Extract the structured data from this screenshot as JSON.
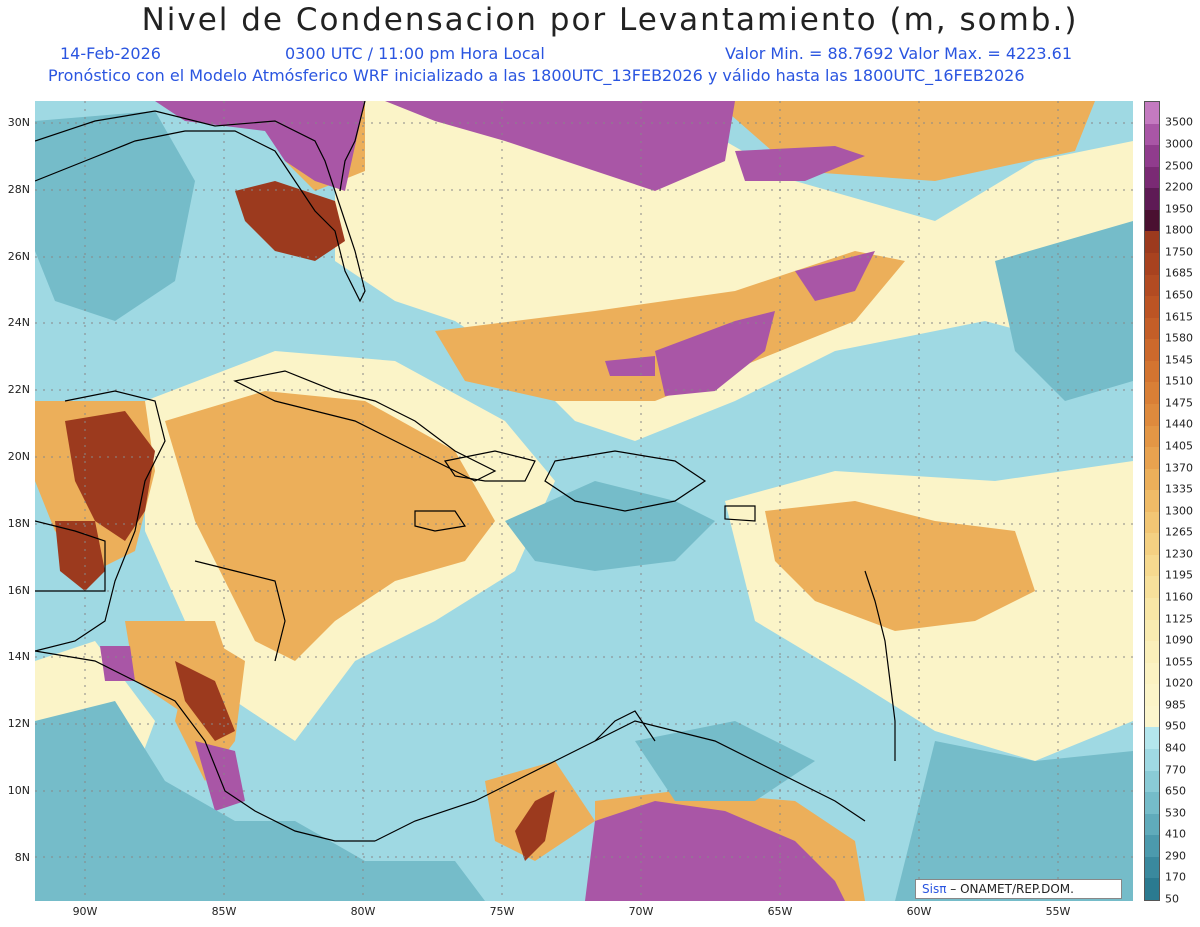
{
  "header": {
    "title": "Nivel de Condensacion por Levantamiento (m, somb.)",
    "date": "14-Feb-2026",
    "time": "0300 UTC / 11:00 pm Hora Local",
    "min_max": "Valor Min. = 88.7692  Valor Max. = 4223.61",
    "forecast": "Pronóstico con el Modelo Atmósferico WRF inicializado a las 1800UTC_13FEB2026 y válido hasta las  1800UTC_16FEB2026"
  },
  "axes": {
    "lat_labels": [
      "30N",
      "28N",
      "26N",
      "24N",
      "22N",
      "20N",
      "18N",
      "16N",
      "14N",
      "12N",
      "10N",
      "8N"
    ],
    "lon_labels": [
      "90W",
      "85W",
      "80W",
      "75W",
      "70W",
      "65W",
      "60W",
      "55W"
    ]
  },
  "colorbar": {
    "levels": [
      "3500",
      "3000",
      "2500",
      "2200",
      "1950",
      "1800",
      "1750",
      "1685",
      "1650",
      "1615",
      "1580",
      "1545",
      "1510",
      "1475",
      "1440",
      "1405",
      "1370",
      "1335",
      "1300",
      "1265",
      "1230",
      "1195",
      "1160",
      "1125",
      "1090",
      "1055",
      "1020",
      "985",
      "950",
      "840",
      "770",
      "650",
      "530",
      "410",
      "290",
      "170",
      "50"
    ],
    "colors": [
      "#c47ac0",
      "#a956a6",
      "#903c8d",
      "#7a2a74",
      "#5e1a55",
      "#4a1030",
      "#9c3a1e",
      "#a8421f",
      "#b24b22",
      "#bc5424",
      "#c45e28",
      "#cc692c",
      "#d37430",
      "#d97f36",
      "#de8a3d",
      "#e39645",
      "#e8a24f",
      "#ecaf5a",
      "#efbb67",
      "#f2c674",
      "#f4d082",
      "#f6d98f",
      "#f7e09b",
      "#f8e6a6",
      "#f9ebb1",
      "#faefba",
      "#fbf2c2",
      "#fbf4c8",
      "#fbf5cc",
      "#b4e6ed",
      "#9fd9e3",
      "#8acbd6",
      "#75bcc9",
      "#60abbb",
      "#4c9aad",
      "#3a899e",
      "#2b7a90"
    ]
  },
  "credit": {
    "sis": "Sisπ",
    "org": " – ONAMET/REP.DOM."
  },
  "map_colors": {
    "ocean_base": "#9fd9e3",
    "coast": "#000000",
    "grid": "#888888"
  }
}
